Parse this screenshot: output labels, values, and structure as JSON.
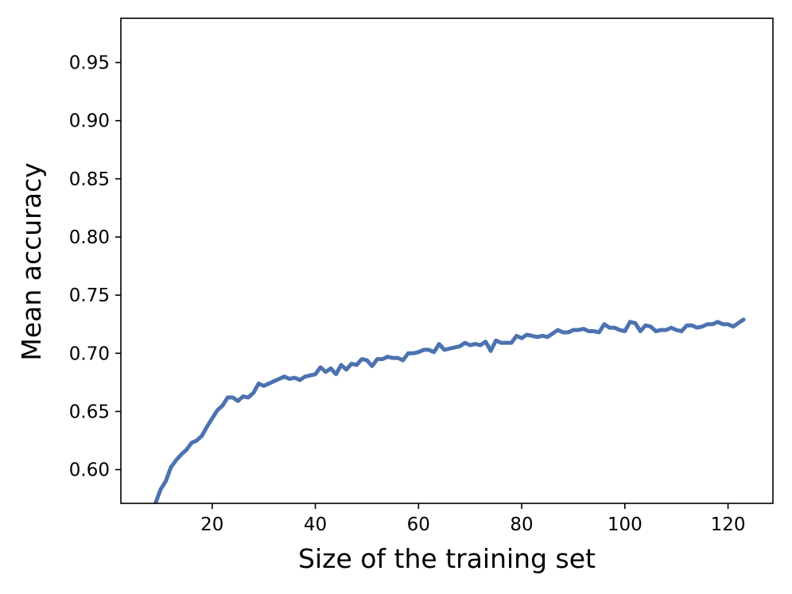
{
  "chart_data": {
    "type": "line",
    "title": "",
    "xlabel": "Size of the training set",
    "ylabel": "Mean accuracy",
    "xlim": [
      2.3,
      128.7
    ],
    "ylim": [
      0.571,
      0.988
    ],
    "xticks": [
      20,
      40,
      60,
      80,
      100,
      120
    ],
    "xtick_labels": [
      "20",
      "40",
      "60",
      "80",
      "100",
      "120"
    ],
    "yticks": [
      0.6,
      0.65,
      0.7,
      0.75,
      0.8,
      0.85,
      0.9,
      0.95
    ],
    "ytick_labels": [
      "0.60",
      "0.65",
      "0.70",
      "0.75",
      "0.80",
      "0.85",
      "0.90",
      "0.95"
    ],
    "grid": false,
    "legend": "none",
    "line_color": "#4c72b0",
    "series": [
      {
        "x": [
          9,
          10,
          11,
          12,
          13,
          14,
          15,
          16,
          17,
          18,
          19,
          20,
          21,
          22,
          23,
          24,
          25,
          26,
          27,
          28,
          29,
          30,
          31,
          32,
          33,
          34,
          35,
          36,
          37,
          38,
          39,
          40,
          41,
          42,
          43,
          44,
          45,
          46,
          47,
          48,
          49,
          50,
          51,
          52,
          53,
          54,
          55,
          56,
          57,
          58,
          59,
          60,
          61,
          62,
          63,
          64,
          65,
          66,
          67,
          68,
          69,
          70,
          71,
          72,
          73,
          74,
          75,
          76,
          77,
          78,
          79,
          80,
          81,
          82,
          83,
          84,
          85,
          86,
          87,
          88,
          89,
          90,
          91,
          92,
          93,
          94,
          95,
          96,
          97,
          98,
          99,
          100,
          101,
          102,
          103,
          104,
          105,
          106,
          107,
          108,
          109,
          110,
          111,
          112,
          113,
          114,
          115,
          116,
          117,
          118,
          119,
          120,
          121,
          122,
          123
        ],
        "values": [
          0.571,
          0.583,
          0.59,
          0.602,
          0.608,
          0.613,
          0.617,
          0.623,
          0.625,
          0.629,
          0.637,
          0.644,
          0.651,
          0.655,
          0.662,
          0.662,
          0.659,
          0.663,
          0.662,
          0.666,
          0.674,
          0.672,
          0.674,
          0.676,
          0.678,
          0.68,
          0.678,
          0.679,
          0.677,
          0.68,
          0.681,
          0.682,
          0.688,
          0.684,
          0.687,
          0.682,
          0.69,
          0.686,
          0.691,
          0.69,
          0.695,
          0.694,
          0.689,
          0.695,
          0.695,
          0.697,
          0.696,
          0.696,
          0.694,
          0.7,
          0.7,
          0.701,
          0.703,
          0.703,
          0.701,
          0.708,
          0.703,
          0.704,
          0.705,
          0.706,
          0.709,
          0.707,
          0.708,
          0.707,
          0.71,
          0.702,
          0.711,
          0.709,
          0.709,
          0.709,
          0.715,
          0.713,
          0.716,
          0.715,
          0.714,
          0.715,
          0.714,
          0.717,
          0.72,
          0.718,
          0.718,
          0.72,
          0.72,
          0.721,
          0.719,
          0.719,
          0.718,
          0.725,
          0.722,
          0.722,
          0.72,
          0.719,
          0.727,
          0.726,
          0.719,
          0.724,
          0.723,
          0.719,
          0.72,
          0.72,
          0.722,
          0.72,
          0.719,
          0.724,
          0.724,
          0.722,
          0.723,
          0.725,
          0.725,
          0.727,
          0.725,
          0.725,
          0.723,
          0.726,
          0.729
        ]
      }
    ]
  }
}
